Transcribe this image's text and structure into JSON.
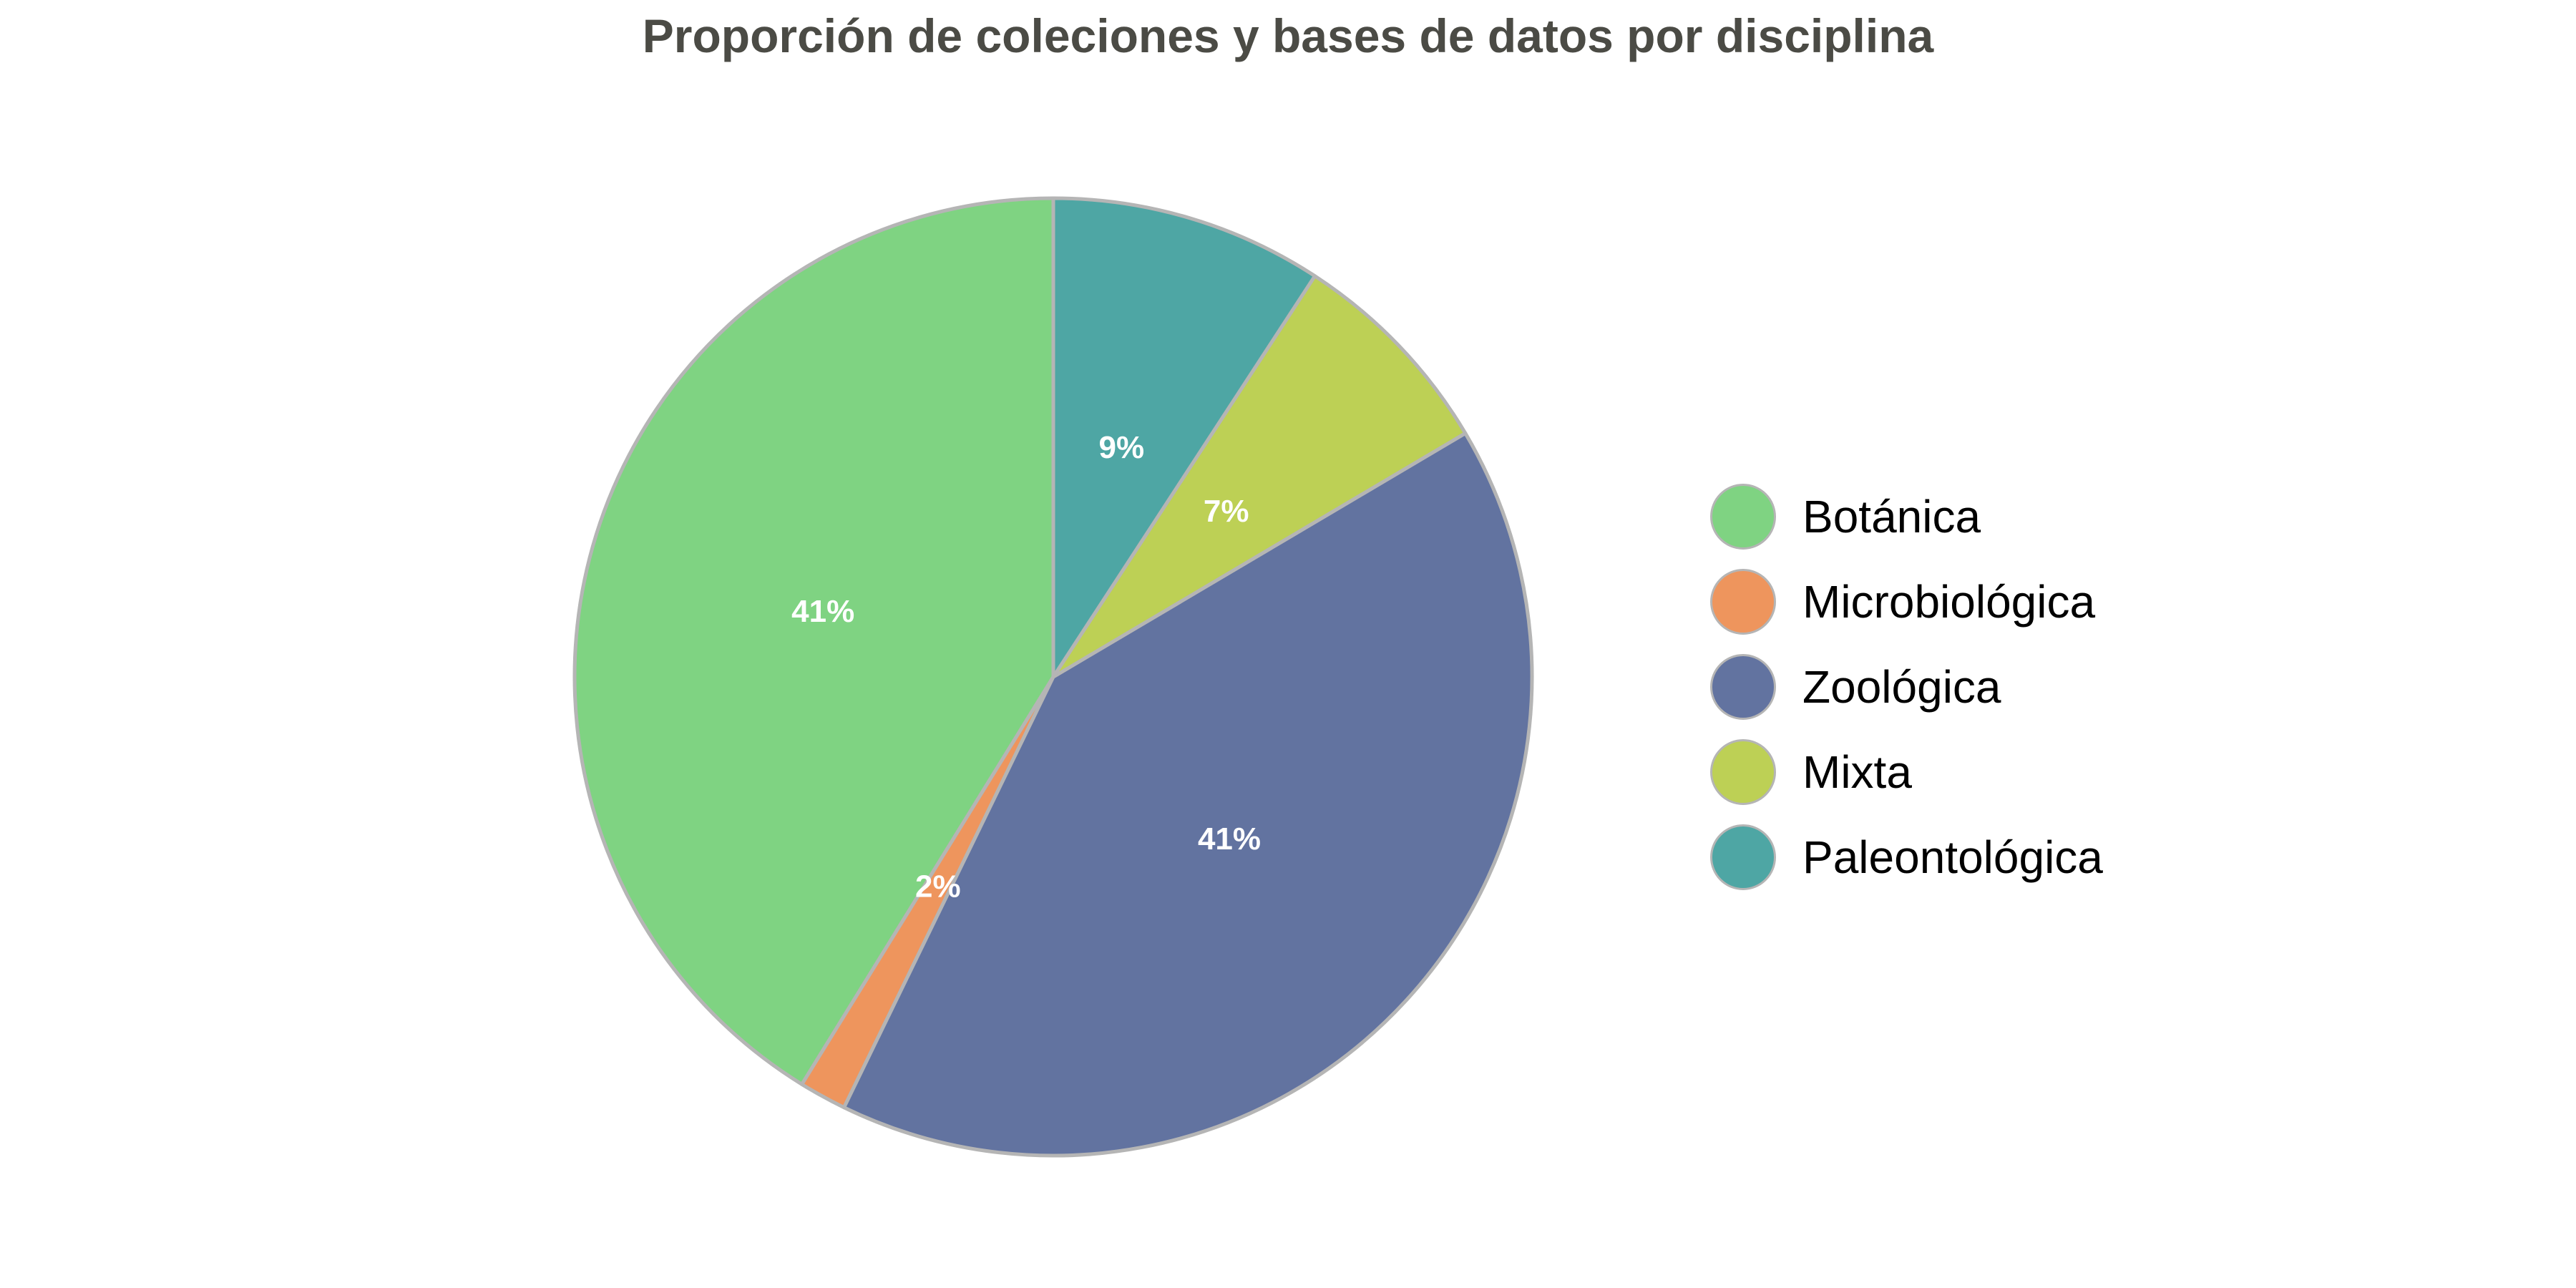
{
  "chart_data": {
    "type": "pie",
    "title": "Proporción de coleciones y bases de datos por disciplina",
    "categories": [
      "Botánica",
      "Microbiológica",
      "Zoológica",
      "Mixta",
      "Paleontológica"
    ],
    "values": [
      41.2,
      1.6,
      40.7,
      7.3,
      9.2
    ],
    "labels": [
      "41%",
      "2%",
      "41%",
      "7%",
      "9%"
    ],
    "colors": [
      "#7fd382",
      "#ee955d",
      "#6273a0",
      "#bdd055",
      "#4ea6a4"
    ],
    "edge_color": "#b5b5b5",
    "start_angle_deg": 90,
    "direction": "counterclockwise",
    "legend_position": "right"
  }
}
